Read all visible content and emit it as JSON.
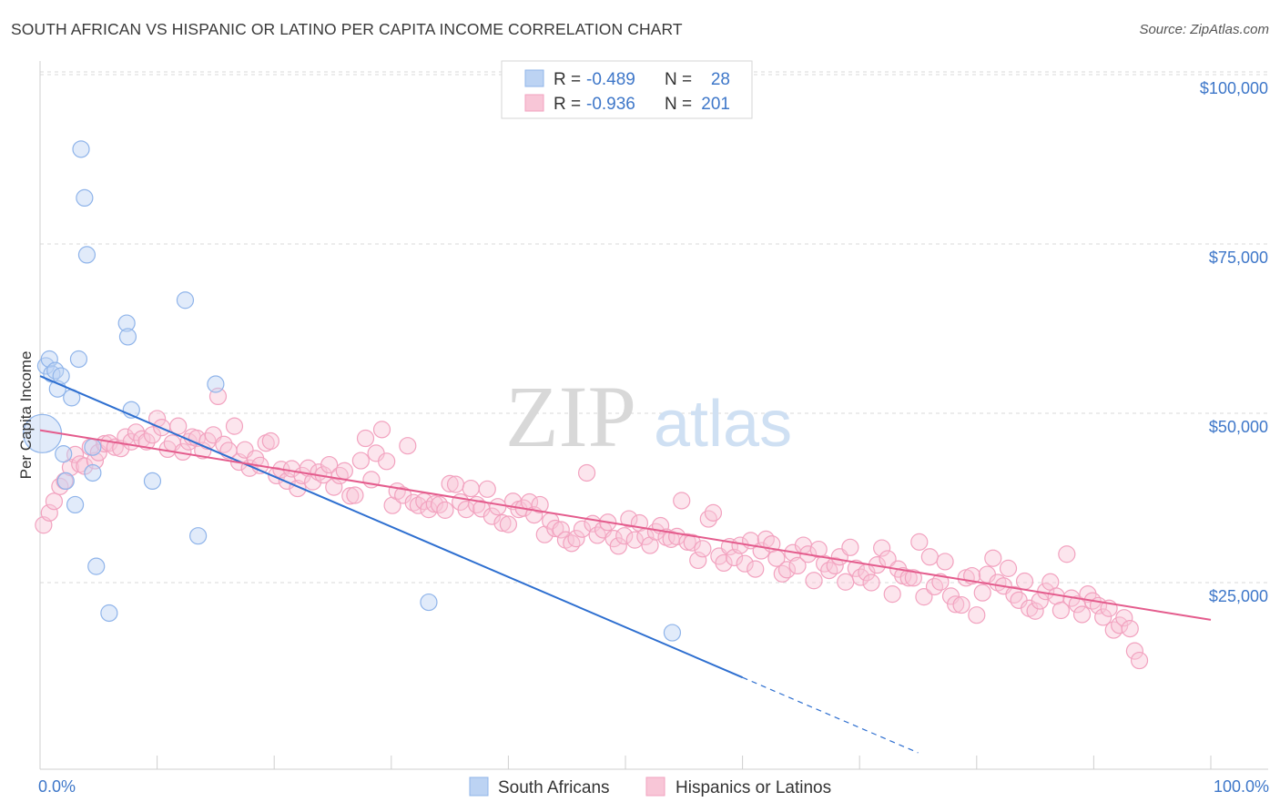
{
  "title": "SOUTH AFRICAN VS HISPANIC OR LATINO PER CAPITA INCOME CORRELATION CHART",
  "source": "Source: ZipAtlas.com",
  "watermark": {
    "zip": "ZIP",
    "atlas": "atlas"
  },
  "colors": {
    "blue": "#8fb4ea",
    "blue_line": "#2e6fd0",
    "pink": "#f2a2bf",
    "pink_line": "#e45c8d",
    "accent_text": "#3e77c9",
    "grid": "#d9d9d9"
  },
  "legend": {
    "rows": [
      {
        "r_label": "R =",
        "r_value": "-0.489",
        "n_label": "N =",
        "n_value": "28"
      },
      {
        "r_label": "R =",
        "r_value": "-0.936",
        "n_label": "N =",
        "n_value": "201"
      }
    ]
  },
  "bottom_legend": [
    "South Africans",
    "Hispanics or Latinos"
  ],
  "chart_data": {
    "type": "scatter",
    "title": "SOUTH AFRICAN VS HISPANIC OR LATINO PER CAPITA INCOME CORRELATION CHART",
    "xlabel": "",
    "ylabel": "Per Capita Income",
    "xlim": [
      0,
      100
    ],
    "ylim": [
      0,
      105000
    ],
    "x_tick_labels": [
      "0.0%",
      "100.0%"
    ],
    "y_ticks": [
      25000,
      50000,
      75000,
      100000
    ],
    "y_tick_labels": [
      "$25,000",
      "$50,000",
      "$75,000",
      "$100,000"
    ],
    "series": [
      {
        "name": "South Africans",
        "R": -0.489,
        "N": 28,
        "trend": {
          "x0": 0,
          "y0": 55500,
          "x1": 60,
          "y1": 11000,
          "dash_to_x": 75
        },
        "points": [
          [
            0.2,
            47000,
            "big"
          ],
          [
            0.5,
            57000
          ],
          [
            0.8,
            58000
          ],
          [
            1.0,
            55800
          ],
          [
            1.3,
            56300
          ],
          [
            1.5,
            53600
          ],
          [
            1.8,
            55500
          ],
          [
            2.0,
            44000
          ],
          [
            2.2,
            40000
          ],
          [
            2.7,
            52300
          ],
          [
            3.0,
            36500
          ],
          [
            3.3,
            58000
          ],
          [
            3.5,
            89000
          ],
          [
            3.8,
            81800
          ],
          [
            4.0,
            73400
          ],
          [
            4.5,
            45000
          ],
          [
            4.5,
            41200
          ],
          [
            4.8,
            27400
          ],
          [
            5.9,
            20500
          ],
          [
            7.4,
            63300
          ],
          [
            7.5,
            61300
          ],
          [
            7.8,
            50500
          ],
          [
            9.6,
            40000
          ],
          [
            12.4,
            66700
          ],
          [
            13.5,
            31900
          ],
          [
            15.0,
            54300
          ],
          [
            33.2,
            22100
          ],
          [
            54.0,
            17600
          ]
        ]
      },
      {
        "name": "Hispanics or Latinos",
        "R": -0.936,
        "N": 201,
        "trend": {
          "x0": 0,
          "y0": 47500,
          "x1": 100,
          "y1": 19500
        },
        "points": [
          [
            0.3,
            33500
          ],
          [
            0.8,
            35300
          ],
          [
            1.2,
            37000
          ],
          [
            1.7,
            39200
          ],
          [
            2.1,
            40000
          ],
          [
            2.6,
            42000
          ],
          [
            3.0,
            43900
          ],
          [
            3.4,
            42500
          ],
          [
            3.8,
            42200
          ],
          [
            4.3,
            45000
          ],
          [
            4.7,
            43000
          ],
          [
            5.0,
            44200
          ],
          [
            5.5,
            45500
          ],
          [
            5.9,
            45600
          ],
          [
            6.4,
            45000
          ],
          [
            6.9,
            44800
          ],
          [
            7.3,
            46500
          ],
          [
            7.8,
            45800
          ],
          [
            8.2,
            47200
          ],
          [
            8.7,
            46200
          ],
          [
            9.1,
            45800
          ],
          [
            9.6,
            46800
          ],
          [
            10.0,
            49200
          ],
          [
            10.4,
            47900
          ],
          [
            10.9,
            44700
          ],
          [
            11.3,
            45600
          ],
          [
            11.8,
            48100
          ],
          [
            12.2,
            44300
          ],
          [
            12.7,
            45800
          ],
          [
            13.0,
            46500
          ],
          [
            13.4,
            46300
          ],
          [
            13.9,
            44500
          ],
          [
            14.3,
            45900
          ],
          [
            14.8,
            46800
          ],
          [
            15.2,
            52500
          ],
          [
            15.7,
            45400
          ],
          [
            16.1,
            44500
          ],
          [
            16.6,
            48100
          ],
          [
            17.0,
            42800
          ],
          [
            17.5,
            44600
          ],
          [
            17.9,
            41900
          ],
          [
            18.4,
            43300
          ],
          [
            18.8,
            42300
          ],
          [
            19.3,
            45600
          ],
          [
            19.7,
            45900
          ],
          [
            20.2,
            40800
          ],
          [
            20.6,
            41700
          ],
          [
            21.1,
            40000
          ],
          [
            21.5,
            41800
          ],
          [
            22.0,
            38900
          ],
          [
            22.4,
            40800
          ],
          [
            22.9,
            41900
          ],
          [
            23.3,
            39900
          ],
          [
            23.8,
            41300
          ],
          [
            24.2,
            40900
          ],
          [
            24.7,
            42400
          ],
          [
            25.1,
            39100
          ],
          [
            25.6,
            40800
          ],
          [
            26.0,
            41500
          ],
          [
            26.5,
            37800
          ],
          [
            26.9,
            37900
          ],
          [
            27.4,
            43000
          ],
          [
            27.8,
            46300
          ],
          [
            28.3,
            40200
          ],
          [
            28.7,
            44100
          ],
          [
            29.2,
            47600
          ],
          [
            29.6,
            42900
          ],
          [
            30.1,
            36400
          ],
          [
            30.5,
            38500
          ],
          [
            31.0,
            37900
          ],
          [
            31.4,
            45200
          ],
          [
            31.9,
            36800
          ],
          [
            32.3,
            36400
          ],
          [
            32.8,
            37000
          ],
          [
            33.2,
            35800
          ],
          [
            33.7,
            36600
          ],
          [
            34.1,
            36500
          ],
          [
            34.6,
            35700
          ],
          [
            35.0,
            39600
          ],
          [
            35.5,
            39500
          ],
          [
            35.9,
            36900
          ],
          [
            36.4,
            35800
          ],
          [
            36.8,
            38900
          ],
          [
            37.3,
            36500
          ],
          [
            37.7,
            35900
          ],
          [
            38.2,
            38800
          ],
          [
            38.6,
            34800
          ],
          [
            39.1,
            36200
          ],
          [
            39.5,
            33800
          ],
          [
            40.0,
            33600
          ],
          [
            40.4,
            37000
          ],
          [
            40.9,
            35800
          ],
          [
            41.3,
            36000
          ],
          [
            41.8,
            36900
          ],
          [
            42.2,
            35000
          ],
          [
            42.7,
            36500
          ],
          [
            43.1,
            32100
          ],
          [
            43.6,
            34100
          ],
          [
            44.0,
            33000
          ],
          [
            44.5,
            32800
          ],
          [
            44.9,
            31300
          ],
          [
            45.4,
            30800
          ],
          [
            45.8,
            31500
          ],
          [
            46.3,
            32900
          ],
          [
            46.7,
            41200
          ],
          [
            47.2,
            33700
          ],
          [
            47.6,
            32000
          ],
          [
            48.1,
            32800
          ],
          [
            48.5,
            33900
          ],
          [
            49.0,
            31500
          ],
          [
            49.4,
            30400
          ],
          [
            49.9,
            31900
          ],
          [
            50.3,
            34400
          ],
          [
            50.8,
            31300
          ],
          [
            51.2,
            33800
          ],
          [
            51.7,
            31800
          ],
          [
            52.1,
            30500
          ],
          [
            52.6,
            32500
          ],
          [
            53.0,
            33400
          ],
          [
            53.5,
            31700
          ],
          [
            53.9,
            31400
          ],
          [
            54.4,
            31800
          ],
          [
            54.8,
            37100
          ],
          [
            55.3,
            31000
          ],
          [
            55.7,
            30900
          ],
          [
            56.2,
            28300
          ],
          [
            56.6,
            30000
          ],
          [
            57.1,
            34400
          ],
          [
            57.5,
            35300
          ],
          [
            58.0,
            28900
          ],
          [
            58.4,
            27900
          ],
          [
            58.9,
            30300
          ],
          [
            59.3,
            28700
          ],
          [
            59.8,
            30500
          ],
          [
            60.2,
            27800
          ],
          [
            60.7,
            31200
          ],
          [
            61.1,
            27000
          ],
          [
            61.6,
            29700
          ],
          [
            62.0,
            31400
          ],
          [
            62.5,
            30700
          ],
          [
            62.9,
            28600
          ],
          [
            63.4,
            26300
          ],
          [
            63.8,
            26900
          ],
          [
            64.3,
            29400
          ],
          [
            64.7,
            27500
          ],
          [
            65.2,
            30500
          ],
          [
            65.6,
            29200
          ],
          [
            66.1,
            25300
          ],
          [
            66.5,
            29900
          ],
          [
            67.0,
            27800
          ],
          [
            67.4,
            26800
          ],
          [
            67.9,
            27500
          ],
          [
            68.3,
            28800
          ],
          [
            68.8,
            25100
          ],
          [
            69.2,
            30200
          ],
          [
            69.7,
            27100
          ],
          [
            70.1,
            25800
          ],
          [
            70.6,
            26500
          ],
          [
            71.0,
            25000
          ],
          [
            71.5,
            27600
          ],
          [
            71.9,
            30100
          ],
          [
            72.4,
            28500
          ],
          [
            72.8,
            23300
          ],
          [
            73.3,
            27000
          ],
          [
            73.7,
            26000
          ],
          [
            74.2,
            25700
          ],
          [
            74.6,
            25700
          ],
          [
            75.1,
            31000
          ],
          [
            75.5,
            22900
          ],
          [
            76.0,
            28800
          ],
          [
            76.4,
            24400
          ],
          [
            76.9,
            25100
          ],
          [
            77.3,
            28100
          ],
          [
            77.8,
            23000
          ],
          [
            78.2,
            21800
          ],
          [
            78.7,
            21700
          ],
          [
            79.1,
            25700
          ],
          [
            79.6,
            26000
          ],
          [
            80.0,
            20200
          ],
          [
            80.5,
            23500
          ],
          [
            80.9,
            26200
          ],
          [
            81.4,
            28600
          ],
          [
            81.8,
            25000
          ],
          [
            82.3,
            24500
          ],
          [
            82.7,
            27100
          ],
          [
            83.2,
            23200
          ],
          [
            83.6,
            22400
          ],
          [
            84.1,
            25200
          ],
          [
            84.5,
            21200
          ],
          [
            85.0,
            20800
          ],
          [
            85.4,
            22300
          ],
          [
            85.9,
            23700
          ],
          [
            86.3,
            25100
          ],
          [
            86.8,
            23000
          ],
          [
            87.2,
            20900
          ],
          [
            87.7,
            29200
          ],
          [
            88.1,
            22700
          ],
          [
            88.6,
            21800
          ],
          [
            89.0,
            20300
          ],
          [
            89.5,
            23300
          ],
          [
            89.9,
            22300
          ],
          [
            90.4,
            21600
          ],
          [
            90.8,
            19900
          ],
          [
            91.3,
            21200
          ],
          [
            91.7,
            18000
          ],
          [
            92.2,
            18700
          ],
          [
            92.6,
            19800
          ],
          [
            93.1,
            18200
          ],
          [
            93.5,
            14900
          ],
          [
            93.9,
            13500
          ]
        ]
      }
    ]
  }
}
